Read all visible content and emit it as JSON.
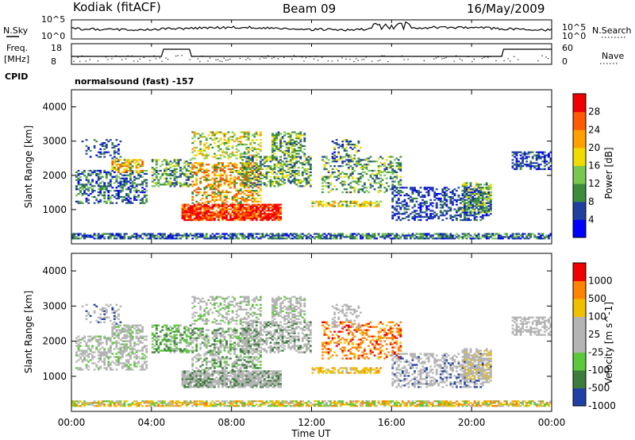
{
  "header": {
    "station": "Kodiak (fitACF)",
    "beam": "Beam 09",
    "date": "16/May/2009"
  },
  "noise_panel": {
    "left_label": "N.Sky",
    "right_label": "N.Search",
    "left_ticks": [
      "10^5",
      "10^0"
    ],
    "right_ticks": [
      "10^5",
      "10^0"
    ]
  },
  "freq_panel": {
    "left_label_1": "Freq.",
    "left_label_2": "[MHz]",
    "right_label": "Nave",
    "left_ticks": [
      "18",
      "8"
    ],
    "right_ticks": [
      "60",
      "0"
    ]
  },
  "cpid": {
    "label": "CPID",
    "value": "normalsound (fast) -157"
  },
  "colors": {
    "power_scale": [
      "#0000ff",
      "#2040a0",
      "#3c8c3c",
      "#78c850",
      "#f0dc00",
      "#ffa000",
      "#ff5a00",
      "#f00000"
    ],
    "velocity_scale": [
      "#2040a8",
      "#3c7c3c",
      "#5cc83c",
      "#b4b4b4",
      "#b4b4b4",
      "#f0c000",
      "#ff8200",
      "#f00000"
    ]
  },
  "chart_data": [
    {
      "type": "heatmap",
      "title": "",
      "ylabel": "Slant Range [km]",
      "yticks": [
        "1000",
        "2000",
        "3000",
        "4000"
      ],
      "ylim": [
        0,
        4500
      ],
      "xlim": [
        "00:00",
        "24:00"
      ],
      "colorbar": {
        "label": "Power [dB]",
        "ticks": [
          "4",
          "8",
          "12",
          "16",
          "20",
          "24",
          "28"
        ],
        "range": [
          0,
          32
        ]
      }
    },
    {
      "type": "heatmap",
      "title": "",
      "ylabel": "Slant Range [km]",
      "yticks": [
        "1000",
        "2000",
        "3000",
        "4000"
      ],
      "ylim": [
        0,
        4500
      ],
      "xlabel": "Time UT",
      "xticks": [
        "00:00",
        "04:00",
        "08:00",
        "12:00",
        "16:00",
        "20:00",
        "00:00"
      ],
      "colorbar": {
        "label": "Velocity [m s^-1]",
        "ticks": [
          "1000",
          "500",
          "100",
          "25",
          "-25",
          "-100",
          "-500",
          "-1000"
        ]
      }
    }
  ]
}
